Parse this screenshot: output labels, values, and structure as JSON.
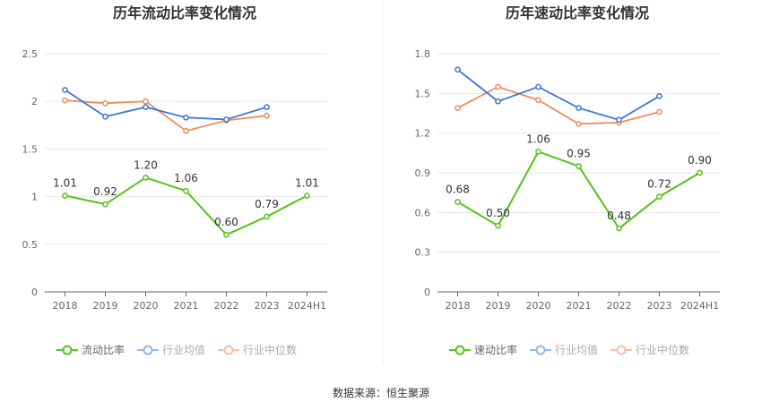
{
  "footer": {
    "source": "数据来源：恒生聚源"
  },
  "colors": {
    "main": "#52c41a",
    "avg": "#3a78d9",
    "median": "#f08a5d",
    "grid": "#e3e6f0",
    "axis": "#666666"
  },
  "chart_data": [
    {
      "type": "line",
      "title": "历年流动比率变化情况",
      "categories": [
        "2018",
        "2019",
        "2020",
        "2021",
        "2022",
        "2023",
        "2024H1"
      ],
      "ylim": [
        0,
        2.5
      ],
      "yticks": [
        "0",
        "0.5",
        "1",
        "1.5",
        "2",
        "2.5"
      ],
      "grid": true,
      "legend_position": "bottom",
      "series": [
        {
          "name": "流动比率",
          "values": [
            1.01,
            0.92,
            1.2,
            1.06,
            0.6,
            0.79,
            1.01
          ],
          "labels": [
            "1.01",
            "0.92",
            "1.20",
            "1.06",
            "0.60",
            "0.79",
            "1.01"
          ]
        },
        {
          "name": "行业均值",
          "values": [
            2.12,
            1.84,
            1.94,
            1.83,
            1.81,
            1.94,
            null
          ]
        },
        {
          "name": "行业中位数",
          "values": [
            2.01,
            1.98,
            2.0,
            1.69,
            1.8,
            1.85,
            null
          ]
        }
      ]
    },
    {
      "type": "line",
      "title": "历年速动比率变化情况",
      "categories": [
        "2018",
        "2019",
        "2020",
        "2021",
        "2022",
        "2023",
        "2024H1"
      ],
      "ylim": [
        0,
        1.8
      ],
      "yticks": [
        "0",
        "0.3",
        "0.6",
        "0.9",
        "1.2",
        "1.5",
        "1.8"
      ],
      "grid": true,
      "legend_position": "bottom",
      "series": [
        {
          "name": "速动比率",
          "values": [
            0.68,
            0.5,
            1.06,
            0.95,
            0.48,
            0.72,
            0.9
          ],
          "labels": [
            "0.68",
            "0.50",
            "1.06",
            "0.95",
            "0.48",
            "0.72",
            "0.90"
          ]
        },
        {
          "name": "行业均值",
          "values": [
            1.68,
            1.44,
            1.55,
            1.39,
            1.3,
            1.48,
            null
          ]
        },
        {
          "name": "行业中位数",
          "values": [
            1.39,
            1.55,
            1.45,
            1.27,
            1.28,
            1.36,
            null
          ]
        }
      ]
    }
  ]
}
